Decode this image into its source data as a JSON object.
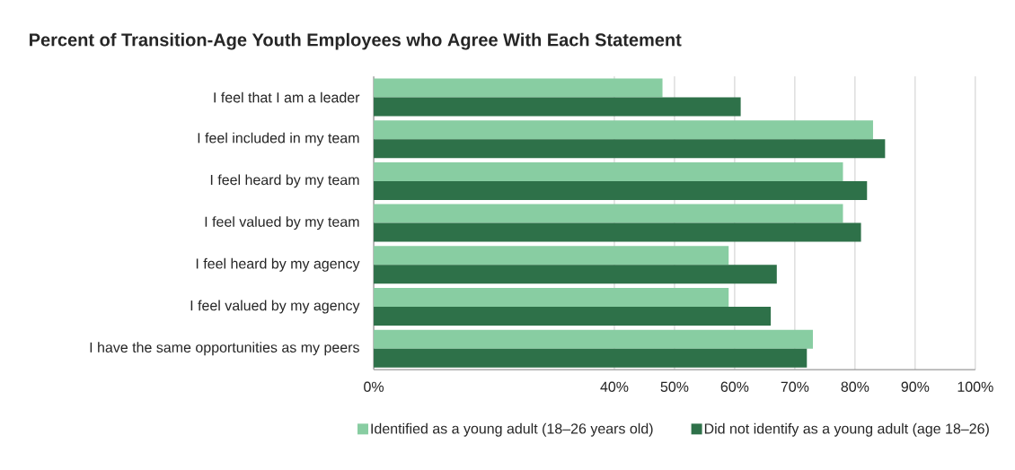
{
  "chart_data": {
    "type": "bar",
    "orientation": "horizontal",
    "title": "Percent of Transition-Age Youth Employees who Agree With Each Statement",
    "categories": [
      "I feel that I am a leader",
      "I feel included in my team",
      "I feel heard by my team",
      "I feel valued by my team",
      "I feel heard by my agency",
      "I feel valued by my agency",
      "I have the same opportunities as my peers"
    ],
    "series": [
      {
        "name": "Identified as a young adult (18–26 years old)",
        "color": "#88cda2",
        "values": [
          48,
          83,
          78,
          78,
          59,
          59,
          73
        ]
      },
      {
        "name": "Did not identify as a young adult (age 18–26)",
        "color": "#2e7149",
        "values": [
          61,
          85,
          82,
          81,
          67,
          66,
          72
        ]
      }
    ],
    "xlim": [
      0,
      100
    ],
    "xticks": [
      {
        "value": 0,
        "label": "0%"
      },
      {
        "value": 40,
        "label": "40%"
      },
      {
        "value": 50,
        "label": "50%"
      },
      {
        "value": 60,
        "label": "60%"
      },
      {
        "value": 70,
        "label": "70%"
      },
      {
        "value": 80,
        "label": "80%"
      },
      {
        "value": 90,
        "label": "90%"
      },
      {
        "value": 100,
        "label": "100%"
      }
    ],
    "grid": "x",
    "legend": "bottom"
  }
}
